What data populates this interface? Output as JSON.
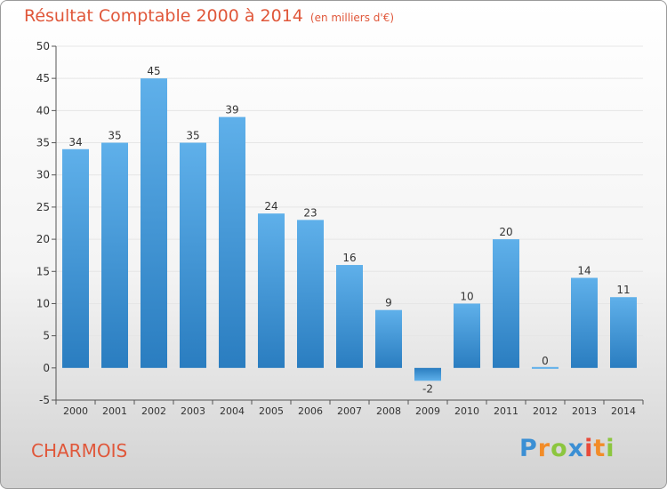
{
  "colors": {
    "accent": "#e0573a",
    "bar_light": "#5fb0ea",
    "bar_dark": "#2a7dc0",
    "grid": "#e6e6e6",
    "axis": "#555555",
    "text": "#333333"
  },
  "header": {
    "title": "Résultat Comptable 2000 à 2014",
    "subtitle": "(en milliers d'€)"
  },
  "footer": {
    "commune": "CHARMOIS",
    "logo": "Proxiti",
    "logo_letters": [
      {
        "ch": "P",
        "color": "#3b8fd4"
      },
      {
        "ch": "r",
        "color": "#f28c28"
      },
      {
        "ch": "o",
        "color": "#8cc63f"
      },
      {
        "ch": "x",
        "color": "#3b8fd4"
      },
      {
        "ch": "i",
        "color": "#e84a3a"
      },
      {
        "ch": "t",
        "color": "#f28c28"
      },
      {
        "ch": "i",
        "color": "#8cc63f"
      }
    ]
  },
  "chart_data": {
    "type": "bar",
    "title": "Résultat Comptable 2000 à 2014",
    "xlabel": "",
    "ylabel": "",
    "ylim": [
      -5,
      50
    ],
    "ytick_step": 5,
    "yticks": [
      "-5",
      "0",
      "5",
      "10",
      "15",
      "20",
      "25",
      "30",
      "35",
      "40",
      "45",
      "50"
    ],
    "grid": true,
    "categories": [
      "2000",
      "2001",
      "2002",
      "2003",
      "2004",
      "2005",
      "2006",
      "2007",
      "2008",
      "2009",
      "2010",
      "2011",
      "2012",
      "2013",
      "2014"
    ],
    "values": [
      34,
      35,
      45,
      35,
      39,
      24,
      23,
      16,
      9,
      -2,
      10,
      20,
      0,
      14,
      11
    ],
    "value_labels": [
      "34",
      "35",
      "45",
      "35",
      "39",
      "24",
      "23",
      "16",
      "9",
      "-2",
      "10",
      "20",
      "0",
      "14",
      "11"
    ]
  }
}
